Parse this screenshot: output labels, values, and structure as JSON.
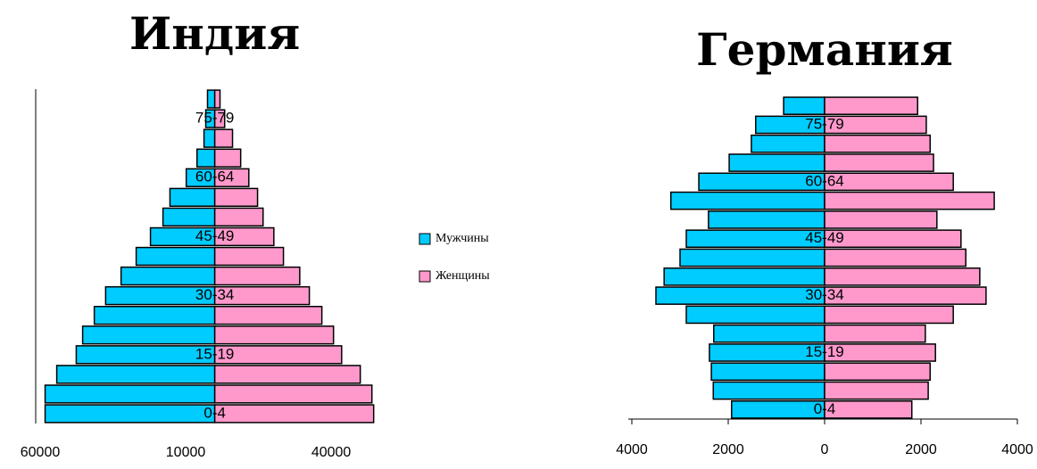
{
  "chart_data": [
    {
      "type": "bar",
      "orientation": "horizontal",
      "title": "Индия",
      "categories": [
        "0-4",
        null,
        null,
        "15-19",
        null,
        null,
        "30-34",
        null,
        null,
        "45-49",
        null,
        null,
        "60-64",
        null,
        null,
        "75-79",
        null
      ],
      "series": [
        {
          "name": "Мужчины",
          "color": "#00ccff",
          "values": [
            -58300,
            -58300,
            -54300,
            -47600,
            -45400,
            -41400,
            -37500,
            -32200,
            -27000,
            -22100,
            -17800,
            -15400,
            -9800,
            -6100,
            -3700,
            -3100,
            -2500
          ]
        },
        {
          "name": "Женщины",
          "color": "#ff99cc",
          "values": [
            54600,
            54000,
            50000,
            43600,
            40800,
            36800,
            32500,
            29200,
            23600,
            20300,
            16600,
            14700,
            11700,
            8900,
            6100,
            3400,
            1800
          ]
        }
      ],
      "xlim": [
        -60000,
        55000
      ],
      "xticks": [
        {
          "value": -60000,
          "label": "60000"
        },
        {
          "value": -10000,
          "label": "10000"
        },
        40000
      ],
      "legend": "right"
    },
    {
      "type": "bar",
      "orientation": "horizontal",
      "title": "Германия",
      "categories": [
        "0-4",
        null,
        null,
        "15-19",
        null,
        null,
        "30-34",
        null,
        null,
        "45-49",
        null,
        null,
        "60-64",
        null,
        null,
        "75-79",
        null
      ],
      "series": [
        {
          "color": "#00ccff",
          "values": [
            -1930,
            -2310,
            -2350,
            -2390,
            -2300,
            -2870,
            -3500,
            -3330,
            -3000,
            -2870,
            -2410,
            -3190,
            -2610,
            -1980,
            -1520,
            -1430,
            -850
          ]
        },
        {
          "color": "#ff99cc",
          "values": [
            1810,
            2150,
            2190,
            2300,
            2090,
            2670,
            3350,
            3220,
            2930,
            2830,
            2330,
            3520,
            2670,
            2260,
            2190,
            2110,
            1930
          ]
        }
      ],
      "xlim": [
        -4000,
        4000
      ],
      "xticks": [
        {
          "value": -4000,
          "label": "4000"
        },
        {
          "value": -2000,
          "label": "2000"
        },
        0,
        2000,
        4000
      ]
    }
  ]
}
